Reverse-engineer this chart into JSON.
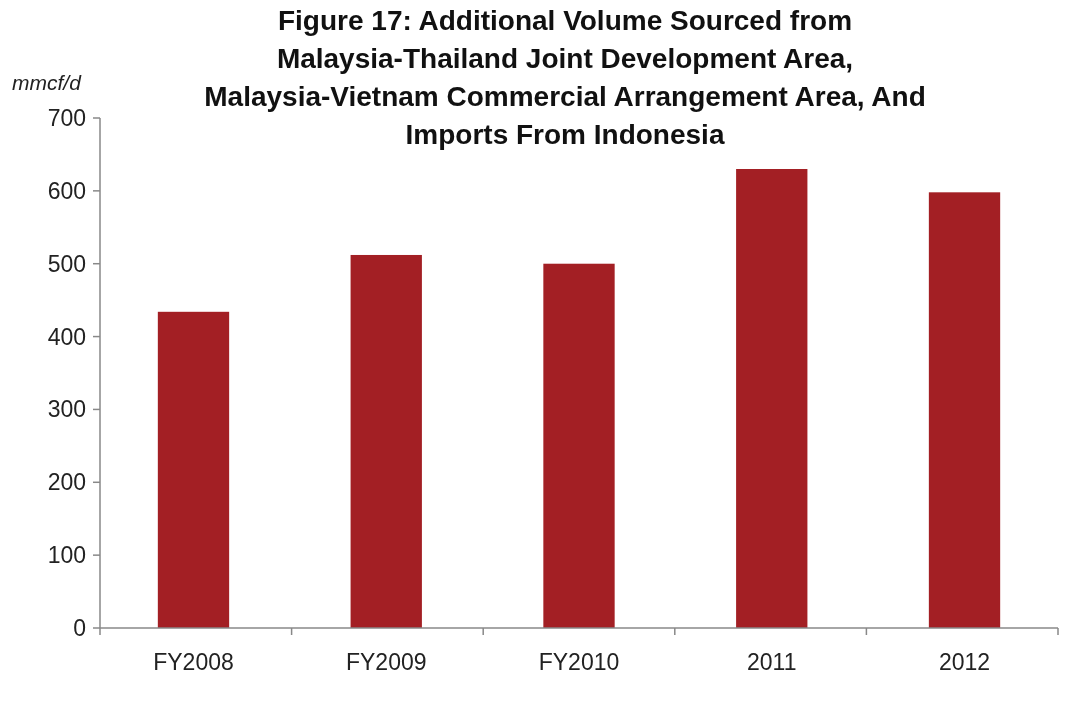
{
  "chart_data": {
    "type": "bar",
    "title": "Figure 17: Additional Volume Sourced from Malaysia-Thailand Joint Development Area, Malaysia-Vietnam Commercial Arrangement Area, And Imports From Indonesia",
    "ylabel": "mmcf/d",
    "categories": [
      "FY2008",
      "FY2009",
      "FY2010",
      "2011",
      "2012"
    ],
    "values": [
      434,
      512,
      500,
      630,
      598
    ],
    "color": "#a31f24",
    "ylim": [
      0,
      700
    ],
    "yticks": [
      0,
      100,
      200,
      300,
      400,
      500,
      600,
      700
    ],
    "grid": false
  }
}
